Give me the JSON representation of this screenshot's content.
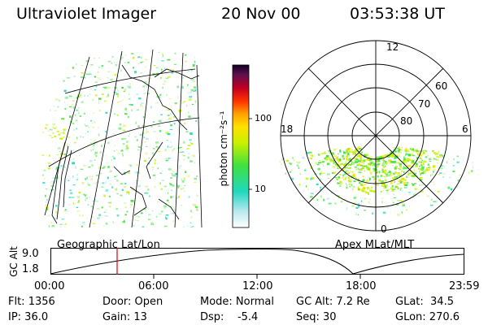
{
  "header": {
    "instrument": "Ultraviolet Imager",
    "date": "20 Nov 00",
    "time": "03:53:38 UT"
  },
  "colorbar": {
    "unit_label": "photon cm⁻²s⁻¹",
    "ticks": [
      "100",
      "10"
    ]
  },
  "polar_plot": {
    "mlt_labels": [
      "12",
      "18",
      "6",
      "0"
    ],
    "lat_labels": [
      "60",
      "70",
      "80"
    ]
  },
  "timeline": {
    "left_label": "Geographic Lat/Lon",
    "right_label": "Apex MLat/MLT",
    "y_axis_label": "GC Alt",
    "y_ticks": [
      "9.0",
      "1.8"
    ],
    "x_ticks": [
      "00:00",
      "06:00",
      "12:00",
      "18:00",
      "23:59"
    ]
  },
  "footer": {
    "flt": "Flt: 1356",
    "ip": "IP: 36.0",
    "door": "Door: Open",
    "gain": "Gain: 13",
    "mode": "Mode: Normal",
    "dsp": "Dsp:    -5.4",
    "gc_alt": "GC Alt: 7.2 Re",
    "seq": "Seq: 30",
    "glat": "GLat:  34.5",
    "glon": "GLon: 270.6"
  }
}
